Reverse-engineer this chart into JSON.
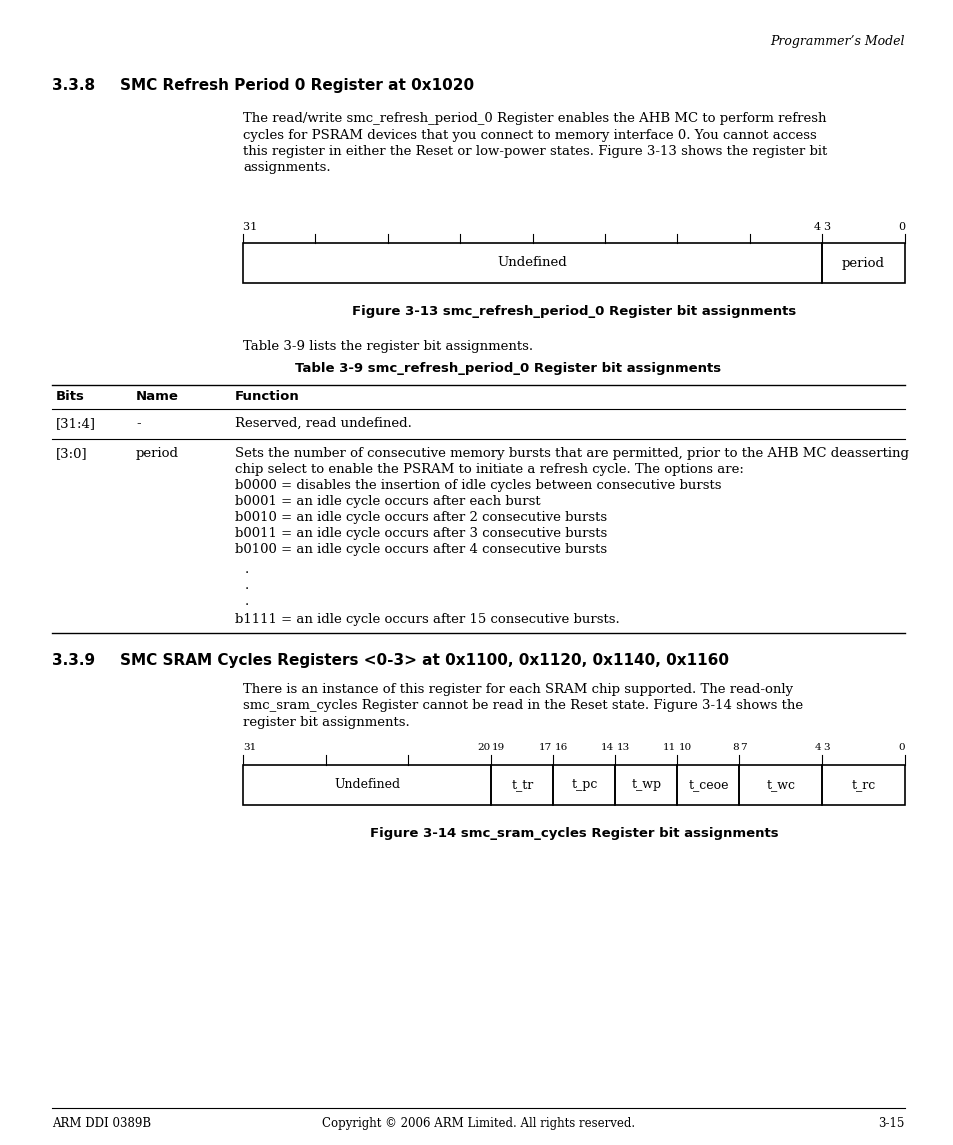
{
  "page_header_right": "Programmer’s Model",
  "section_338_num": "3.3.8",
  "section_338_title": "SMC Refresh Period 0 Register at 0x1020",
  "para_338_lines": [
    "The read/write smc_refresh_period_0 Register enables the AHB MC to perform refresh",
    "cycles for PSRAM devices that you connect to memory interface 0. You cannot access",
    "this register in either the Reset or low-power states. Figure 3-13 shows the register bit",
    "assignments."
  ],
  "fig313_cell1_text": "Undefined",
  "fig313_cell2_text": "period",
  "fig313_caption": "Figure 3-13 smc_refresh_period_0 Register bit assignments",
  "table39_intro": "Table 3-9 lists the register bit assignments.",
  "table39_title": "Table 3-9 smc_refresh_period_0 Register bit assignments",
  "table39_col_bits": "Bits",
  "table39_col_name": "Name",
  "table39_col_func": "Function",
  "table39_row1_bits": "[31:4]",
  "table39_row1_name": "-",
  "table39_row1_func": "Reserved, read undefined.",
  "table39_row2_bits": "[3:0]",
  "table39_row2_name": "period",
  "table39_row2_func_lines": [
    "Sets the number of consecutive memory bursts that are permitted, prior to the AHB MC deasserting",
    "chip select to enable the PSRAM to initiate a refresh cycle. The options are:",
    "b0000 = disables the insertion of idle cycles between consecutive bursts",
    "b0001 = an idle cycle occurs after each burst",
    "b0010 = an idle cycle occurs after 2 consecutive bursts",
    "b0011 = an idle cycle occurs after 3 consecutive bursts",
    "b0100 = an idle cycle occurs after 4 consecutive bursts"
  ],
  "table39_row2_b1111": "b1111 = an idle cycle occurs after 15 consecutive bursts.",
  "section_339_num": "3.3.9",
  "section_339_title": "SMC SRAM Cycles Registers <0-3> at 0x1100, 0x1120, 0x1140, 0x1160",
  "para_339_lines": [
    "There is an instance of this register for each SRAM chip supported. The read-only",
    "smc_sram_cycles Register cannot be read in the Reset state. Figure 3-14 shows the",
    "register bit assignments."
  ],
  "fig314_cells": [
    "Undefined",
    "t_tr",
    "t_pc",
    "t_wp",
    "t_ceoe",
    "t_wc",
    "t_rc"
  ],
  "fig314_bit_widths": [
    12,
    3,
    3,
    3,
    3,
    4,
    4
  ],
  "fig314_caption": "Figure 3-14 smc_sram_cycles Register bit assignments",
  "footer_left": "ARM DDI 0389B",
  "footer_center": "Copyright © 2006 ARM Limited. All rights reserved.",
  "footer_right": "3-15",
  "bg_color": "#ffffff",
  "text_color": "#000000"
}
